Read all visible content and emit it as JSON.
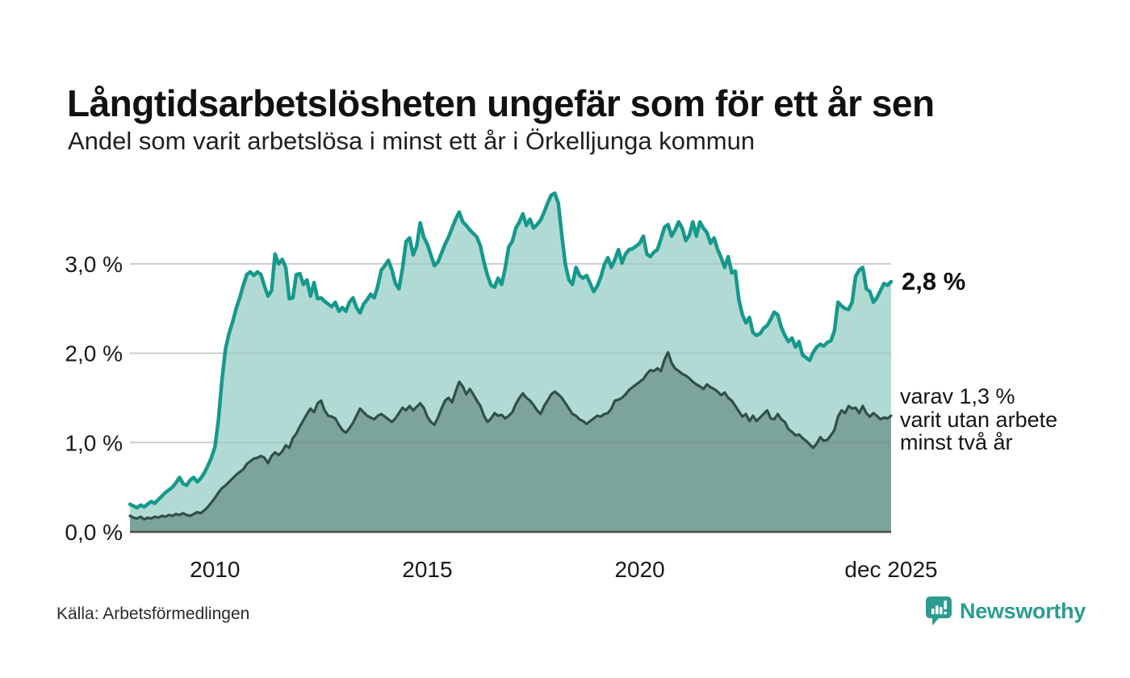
{
  "header": {
    "title": "Långtidsarbetslösheten ungefär som för ett år sen",
    "subtitle": "Andel som varit arbetslösa i minst ett år i Örkelljunga kommun"
  },
  "chart_data": {
    "type": "area",
    "title": "Långtidsarbetslösheten ungefär som för ett år sen",
    "subtitle": "Andel som varit arbetslösa i minst ett år i Örkelljunga kommun",
    "unit": "%",
    "x_start_year": 2008,
    "x_interval": "monthly",
    "x_end_label": "dec 2025",
    "ylim": [
      0,
      3.9
    ],
    "grid": true,
    "y_ticks": [
      {
        "value": 0,
        "label": "0,0 %"
      },
      {
        "value": 1,
        "label": "1,0 %"
      },
      {
        "value": 2,
        "label": "2,0 %"
      },
      {
        "value": 3,
        "label": "3,0 %"
      }
    ],
    "x_ticks": [
      {
        "t": 2010.0,
        "label": "2010"
      },
      {
        "t": 2015.0,
        "label": "2015"
      },
      {
        "t": 2020.0,
        "label": "2020"
      },
      {
        "t": 2025.917,
        "label": "dec 2025"
      }
    ],
    "colors": {
      "series1_line": "#16998c",
      "series1_fill": "#b2dad4",
      "series2_line": "#2f5049",
      "series2_fill": "#7ca39c",
      "gridline": "#dcdcdc",
      "axis": "#4a4a4a",
      "tick_text": "#191919"
    },
    "series": [
      {
        "name": "Andel arbetslösa minst ett år",
        "end_value": "2,8 %",
        "values": [
          0.31,
          0.29,
          0.27,
          0.3,
          0.28,
          0.31,
          0.34,
          0.32,
          0.36,
          0.4,
          0.44,
          0.47,
          0.5,
          0.55,
          0.61,
          0.54,
          0.52,
          0.58,
          0.61,
          0.56,
          0.6,
          0.66,
          0.74,
          0.83,
          0.95,
          1.25,
          1.7,
          2.05,
          2.22,
          2.35,
          2.5,
          2.62,
          2.76,
          2.88,
          2.91,
          2.87,
          2.91,
          2.88,
          2.75,
          2.64,
          2.7,
          3.11,
          3.0,
          3.05,
          2.96,
          2.61,
          2.62,
          2.88,
          2.89,
          2.77,
          2.82,
          2.64,
          2.79,
          2.61,
          2.62,
          2.58,
          2.55,
          2.52,
          2.57,
          2.47,
          2.51,
          2.47,
          2.57,
          2.62,
          2.51,
          2.45,
          2.55,
          2.6,
          2.66,
          2.62,
          2.75,
          2.93,
          2.98,
          3.04,
          2.93,
          2.78,
          2.72,
          2.95,
          3.25,
          3.29,
          3.1,
          3.2,
          3.46,
          3.3,
          3.22,
          3.1,
          2.98,
          3.02,
          3.12,
          3.22,
          3.3,
          3.4,
          3.5,
          3.58,
          3.47,
          3.43,
          3.38,
          3.34,
          3.3,
          3.2,
          3.02,
          2.87,
          2.76,
          2.74,
          2.84,
          2.77,
          2.95,
          3.19,
          3.25,
          3.4,
          3.47,
          3.56,
          3.43,
          3.5,
          3.4,
          3.44,
          3.49,
          3.58,
          3.68,
          3.77,
          3.79,
          3.68,
          3.32,
          2.99,
          2.82,
          2.77,
          2.96,
          2.87,
          2.84,
          2.87,
          2.78,
          2.69,
          2.75,
          2.85,
          2.99,
          3.07,
          2.96,
          3.05,
          3.16,
          3.01,
          3.11,
          3.16,
          3.17,
          3.2,
          3.23,
          3.31,
          3.11,
          3.08,
          3.13,
          3.16,
          3.28,
          3.41,
          3.44,
          3.31,
          3.38,
          3.47,
          3.4,
          3.26,
          3.32,
          3.47,
          3.31,
          3.47,
          3.4,
          3.35,
          3.23,
          3.29,
          3.16,
          3.07,
          2.96,
          3.08,
          2.9,
          2.92,
          2.6,
          2.43,
          2.34,
          2.4,
          2.23,
          2.2,
          2.22,
          2.28,
          2.31,
          2.38,
          2.46,
          2.43,
          2.29,
          2.2,
          2.13,
          2.17,
          2.07,
          2.13,
          1.98,
          1.95,
          1.92,
          2.01,
          2.07,
          2.1,
          2.08,
          2.12,
          2.14,
          2.25,
          2.57,
          2.53,
          2.5,
          2.49,
          2.57,
          2.86,
          2.93,
          2.96,
          2.72,
          2.69,
          2.57,
          2.62,
          2.7,
          2.78,
          2.76,
          2.8
        ]
      },
      {
        "name": "varav utan arbete minst två år",
        "end_value": "1,3 %",
        "values": [
          0.18,
          0.16,
          0.15,
          0.17,
          0.14,
          0.16,
          0.15,
          0.17,
          0.16,
          0.18,
          0.17,
          0.19,
          0.18,
          0.2,
          0.19,
          0.21,
          0.19,
          0.18,
          0.2,
          0.22,
          0.21,
          0.24,
          0.28,
          0.33,
          0.38,
          0.44,
          0.49,
          0.52,
          0.56,
          0.6,
          0.64,
          0.67,
          0.7,
          0.76,
          0.79,
          0.82,
          0.83,
          0.85,
          0.83,
          0.77,
          0.85,
          0.89,
          0.86,
          0.9,
          0.97,
          0.94,
          1.05,
          1.1,
          1.18,
          1.25,
          1.32,
          1.38,
          1.34,
          1.44,
          1.47,
          1.36,
          1.3,
          1.29,
          1.27,
          1.2,
          1.14,
          1.11,
          1.16,
          1.22,
          1.3,
          1.38,
          1.34,
          1.3,
          1.28,
          1.26,
          1.3,
          1.32,
          1.29,
          1.26,
          1.23,
          1.27,
          1.33,
          1.39,
          1.36,
          1.41,
          1.36,
          1.4,
          1.44,
          1.39,
          1.29,
          1.23,
          1.2,
          1.28,
          1.38,
          1.47,
          1.5,
          1.45,
          1.57,
          1.68,
          1.63,
          1.54,
          1.6,
          1.54,
          1.47,
          1.41,
          1.3,
          1.23,
          1.27,
          1.33,
          1.3,
          1.31,
          1.27,
          1.3,
          1.34,
          1.43,
          1.5,
          1.55,
          1.5,
          1.47,
          1.42,
          1.36,
          1.32,
          1.41,
          1.47,
          1.54,
          1.57,
          1.54,
          1.5,
          1.44,
          1.38,
          1.32,
          1.3,
          1.26,
          1.24,
          1.21,
          1.24,
          1.27,
          1.3,
          1.29,
          1.32,
          1.33,
          1.38,
          1.47,
          1.48,
          1.5,
          1.54,
          1.59,
          1.62,
          1.65,
          1.68,
          1.71,
          1.77,
          1.81,
          1.8,
          1.83,
          1.8,
          1.93,
          2.01,
          1.89,
          1.83,
          1.8,
          1.77,
          1.75,
          1.72,
          1.68,
          1.65,
          1.63,
          1.6,
          1.65,
          1.62,
          1.6,
          1.57,
          1.53,
          1.56,
          1.5,
          1.47,
          1.41,
          1.35,
          1.29,
          1.32,
          1.24,
          1.3,
          1.24,
          1.28,
          1.32,
          1.36,
          1.27,
          1.26,
          1.32,
          1.26,
          1.23,
          1.15,
          1.12,
          1.08,
          1.09,
          1.05,
          1.02,
          0.98,
          0.94,
          0.99,
          1.06,
          1.02,
          1.03,
          1.08,
          1.14,
          1.29,
          1.36,
          1.33,
          1.41,
          1.38,
          1.39,
          1.33,
          1.41,
          1.33,
          1.29,
          1.33,
          1.3,
          1.26,
          1.28,
          1.27,
          1.3
        ]
      }
    ],
    "annotations": {
      "end_value": {
        "text": "2,8 %"
      },
      "sub_value": {
        "lines": [
          "varav 1,3 %",
          "varit utan arbete",
          "minst två år"
        ]
      }
    }
  },
  "footer": {
    "source": "Källa: Arbetsförmedlingen",
    "brand": "Newsworthy"
  }
}
